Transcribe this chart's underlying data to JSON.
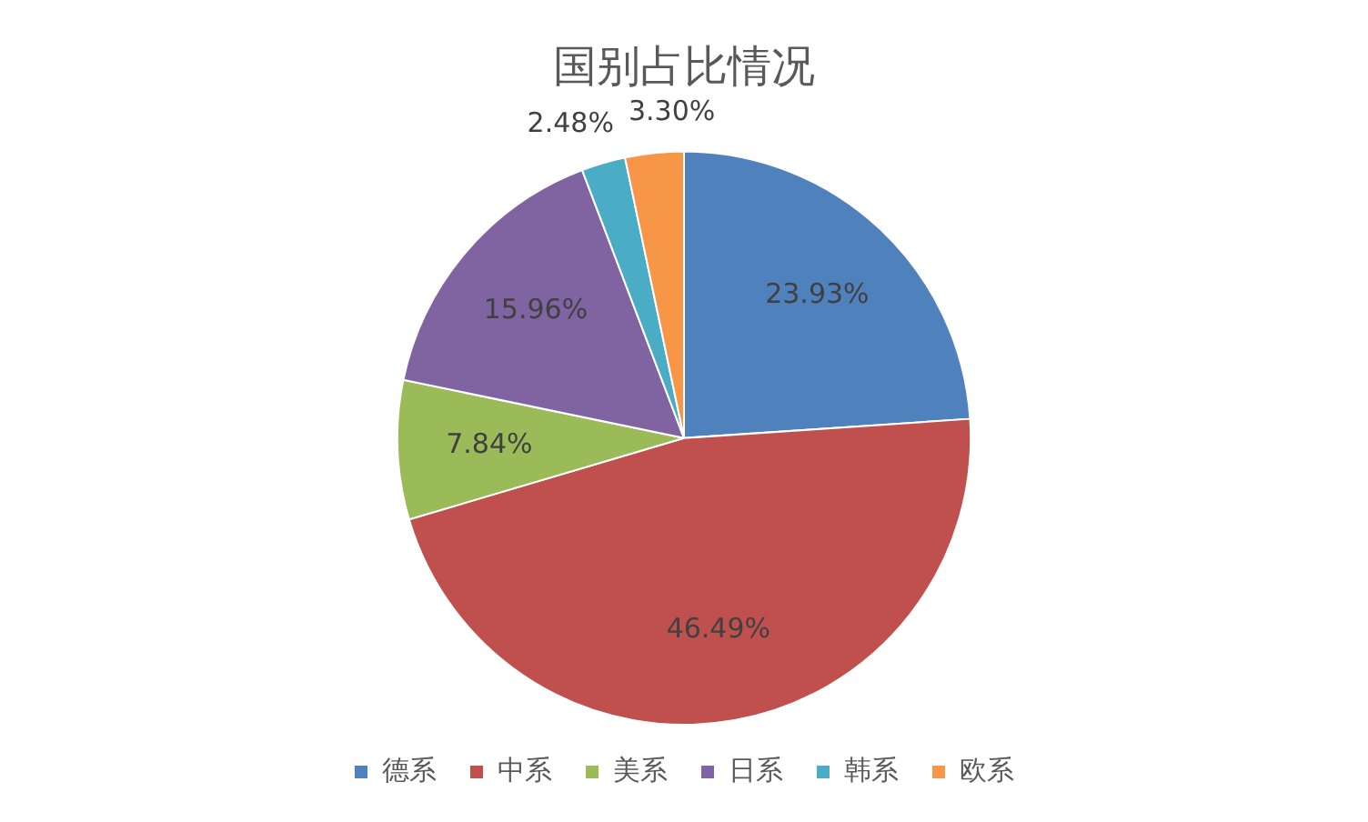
{
  "chart_data": {
    "type": "pie",
    "title": "国别占比情况",
    "categories": [
      "德系",
      "中系",
      "美系",
      "日系",
      "韩系",
      "欧系"
    ],
    "values": [
      23.93,
      46.49,
      7.84,
      15.96,
      2.48,
      3.3
    ],
    "value_labels": [
      "23.93%",
      "46.49%",
      "7.84%",
      "15.96%",
      "2.48%",
      "3.30%"
    ],
    "colors": [
      "#4f81bd",
      "#c0504d",
      "#9bbb59",
      "#8064a2",
      "#4bacc6",
      "#f79646"
    ],
    "legend": "bottom"
  }
}
